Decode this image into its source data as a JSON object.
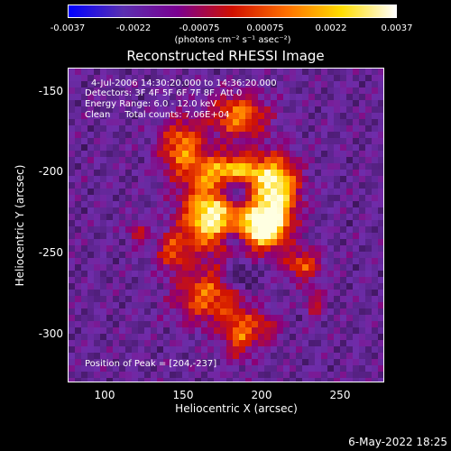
{
  "colorbar": {
    "ticks": [
      "-0.0037",
      "-0.0022",
      "-0.00075",
      "0.00075",
      "0.0022",
      "0.0037"
    ],
    "unit_label": "(photons cm⁻² s⁻¹ asec⁻²)"
  },
  "title": "Reconstructed RHESSI Image",
  "info": {
    "time_range": "4-Jul-2006 14:30:20.000 to 14:36:20.000",
    "detectors": "Detectors: 3F 4F 5F 6F 7F 8F, Att 0",
    "energy_range": "Energy Range: 6.0 - 12.0 keV",
    "clean_counts": "Clean     Total counts: 7.06E+04",
    "peak": "Position of Peak = [204,-237]"
  },
  "axes": {
    "xlabel": "Heliocentric X (arcsec)",
    "ylabel": "Heliocentric Y (arcsec)",
    "xticks": [
      "100",
      "150",
      "200",
      "250"
    ],
    "yticks": [
      "-150",
      "-200",
      "-250",
      "-300"
    ]
  },
  "footer": {
    "date": "6-May-2022 18:25"
  },
  "colors": {
    "background": "#000000",
    "colormap": [
      "#0000ff",
      "#5a2fb0",
      "#7a0090",
      "#d01000",
      "#ff7000",
      "#ffdd00",
      "#ffffff"
    ]
  }
}
